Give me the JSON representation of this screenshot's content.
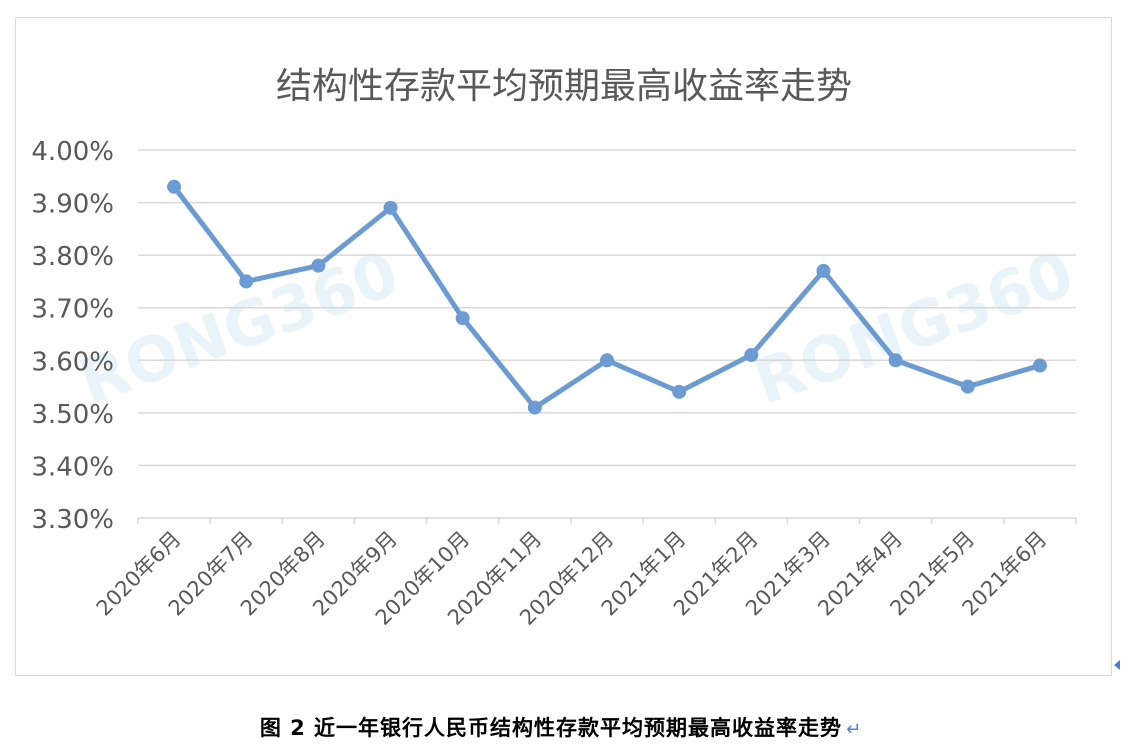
{
  "chart_data": {
    "type": "line",
    "title": "结构性存款平均预期最高收益率走势",
    "categories": [
      "2020年6月",
      "2020年7月",
      "2020年8月",
      "2020年9月",
      "2020年10月",
      "2020年11月",
      "2020年12月",
      "2021年1月",
      "2021年2月",
      "2021年3月",
      "2021年4月",
      "2021年5月",
      "2021年6月"
    ],
    "series": [
      {
        "values": [
          3.93,
          3.75,
          3.78,
          3.89,
          3.68,
          3.51,
          3.6,
          3.54,
          3.61,
          3.77,
          3.6,
          3.55,
          3.59
        ]
      }
    ],
    "yticks": [
      "3.30%",
      "3.40%",
      "3.50%",
      "3.60%",
      "3.70%",
      "3.80%",
      "3.90%",
      "4.00%"
    ],
    "ylim": [
      3.3,
      4.0
    ],
    "grid": true,
    "line_color": "#6b9bd2",
    "watermark": "RONG360"
  },
  "caption": {
    "text": "图 2  近一年银行人民币结构性存款平均预期最高收益率走势",
    "return_mark": "↵"
  }
}
